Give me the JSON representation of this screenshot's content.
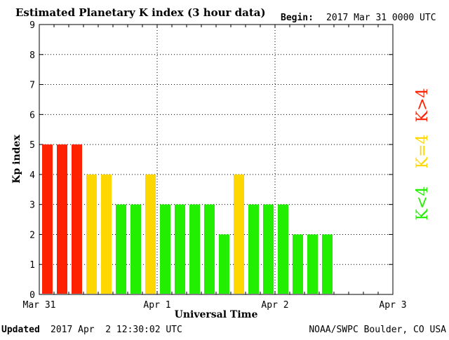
{
  "header": {
    "title": "Estimated Planetary K index (3 hour data)",
    "begin_label": "Begin:",
    "begin_value": "2017 Mar 31 0000 UTC"
  },
  "footer": {
    "updated_label": "Updated",
    "updated_value": "2017 Apr  2 12:30:02 UTC",
    "source": "NOAA/SWPC Boulder, CO USA"
  },
  "legend": {
    "high": "K>4",
    "mid": "K=4",
    "low": "K<4"
  },
  "colors": {
    "high": "#ff2200",
    "mid": "#ffd700",
    "low": "#22ee00",
    "grid": "#000000"
  },
  "chart_data": {
    "type": "bar",
    "title": "Estimated Planetary K index (3 hour data)",
    "xlabel": "Universal Time",
    "ylabel": "Kp index",
    "ylim": [
      0,
      9
    ],
    "yticks": [
      "0",
      "1",
      "2",
      "3",
      "4",
      "5",
      "6",
      "7",
      "8",
      "9"
    ],
    "xticks": [
      "Mar 31",
      "Apr 1",
      "Apr 2",
      "Apr 3"
    ],
    "bars_per_day": 8,
    "total_slots": 24,
    "values": [
      5,
      5,
      5,
      4,
      4,
      3,
      3,
      4,
      3,
      3,
      3,
      3,
      2,
      4,
      3,
      3,
      3,
      2,
      2,
      2
    ],
    "grid": true
  }
}
